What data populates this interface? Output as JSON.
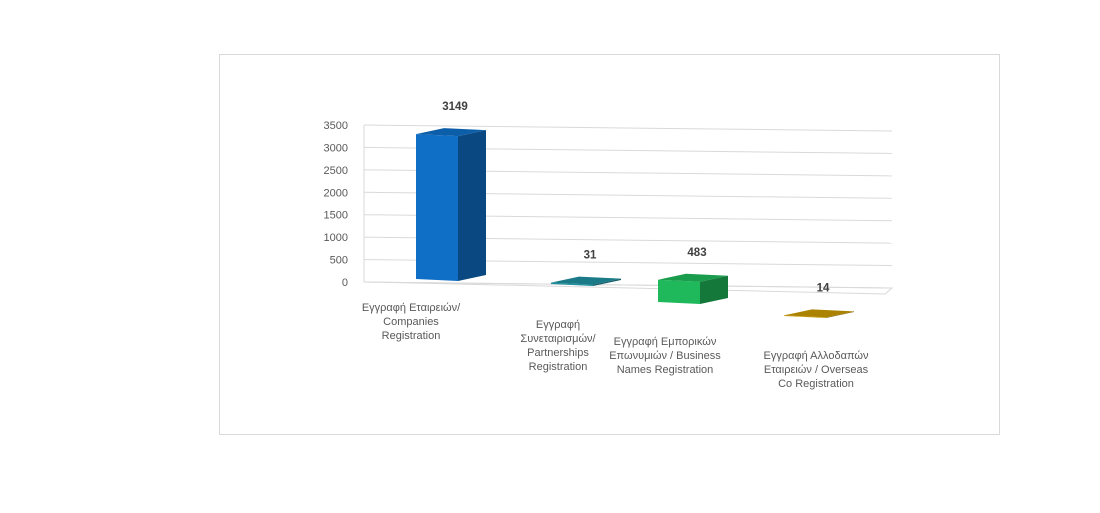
{
  "chart_data": {
    "type": "bar",
    "style": "3d-column",
    "title": "",
    "xlabel": "",
    "ylabel": "",
    "ylim": [
      0,
      3500
    ],
    "yticks": [
      0,
      500,
      1000,
      1500,
      2000,
      2500,
      3000,
      3500
    ],
    "grid": true,
    "legend": "none",
    "categories": [
      [
        "Εγγραφή Εταιρειών/",
        "Companies",
        "Registration"
      ],
      [
        "Εγγραφή",
        "Συνεταιρισμών/",
        "Partnerships",
        "Registration"
      ],
      [
        "Εγγραφή Εμπορικών",
        "Επωνυμιών / Business",
        "Names Registration"
      ],
      [
        "Εγγραφή Αλλοδαπών",
        "Εταιρειών / Overseas",
        "Co Registration"
      ]
    ],
    "values": [
      3149,
      31,
      483,
      14
    ],
    "data_labels": [
      "3149",
      "31",
      "483",
      "14"
    ],
    "colors": [
      "#0f6fc6",
      "#1e8fa0",
      "#1fb85a",
      "#c99a00"
    ]
  }
}
